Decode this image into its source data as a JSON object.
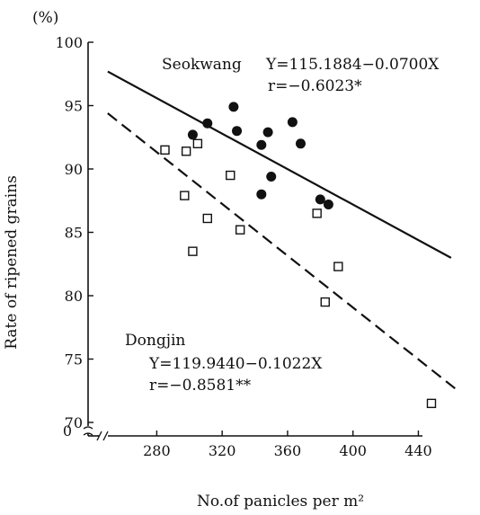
{
  "chart_data": {
    "type": "scatter",
    "xlabel": "No.of panicles per m²",
    "ylabel": "Rate of ripened grains",
    "y_unit": "(%)",
    "xlim": [
      238,
      470
    ],
    "ylim": [
      70,
      100
    ],
    "y_axis_break": true,
    "y_zero_label": "0",
    "x_ticks": [
      280,
      320,
      360,
      400,
      440
    ],
    "y_ticks": [
      70,
      75,
      80,
      85,
      90,
      95,
      100
    ],
    "grid": false,
    "series": [
      {
        "name": "Seokwang",
        "marker": "filled-circle",
        "color": "#111111",
        "equation": "Y=115.1884−0.0700X",
        "r_text": "r=−0.6023*",
        "regression": {
          "intercept": 115.1884,
          "slope": -0.07,
          "x_range": [
            250,
            460
          ],
          "style": "solid"
        },
        "points": [
          {
            "x": 302,
            "y": 92.7
          },
          {
            "x": 311,
            "y": 93.6
          },
          {
            "x": 327,
            "y": 94.9
          },
          {
            "x": 329,
            "y": 93.0
          },
          {
            "x": 344,
            "y": 88.0
          },
          {
            "x": 344,
            "y": 91.9
          },
          {
            "x": 348,
            "y": 92.9
          },
          {
            "x": 350,
            "y": 89.4
          },
          {
            "x": 363,
            "y": 93.7
          },
          {
            "x": 368,
            "y": 92.0
          },
          {
            "x": 380,
            "y": 87.6
          },
          {
            "x": 385,
            "y": 87.2
          }
        ]
      },
      {
        "name": "Dongjin",
        "marker": "open-square",
        "color": "#111111",
        "equation": "Y=119.9440−0.1022X",
        "r_text": "r=−0.8581**",
        "regression": {
          "intercept": 119.944,
          "slope": -0.1022,
          "x_range": [
            250,
            465
          ],
          "style": "dashed"
        },
        "points": [
          {
            "x": 285,
            "y": 91.5
          },
          {
            "x": 298,
            "y": 91.4
          },
          {
            "x": 305,
            "y": 92.0
          },
          {
            "x": 297,
            "y": 87.9
          },
          {
            "x": 302,
            "y": 83.5
          },
          {
            "x": 311,
            "y": 86.1
          },
          {
            "x": 325,
            "y": 89.5
          },
          {
            "x": 331,
            "y": 85.2
          },
          {
            "x": 378,
            "y": 86.5
          },
          {
            "x": 383,
            "y": 79.5
          },
          {
            "x": 391,
            "y": 82.3
          },
          {
            "x": 448,
            "y": 71.5
          }
        ]
      }
    ]
  }
}
